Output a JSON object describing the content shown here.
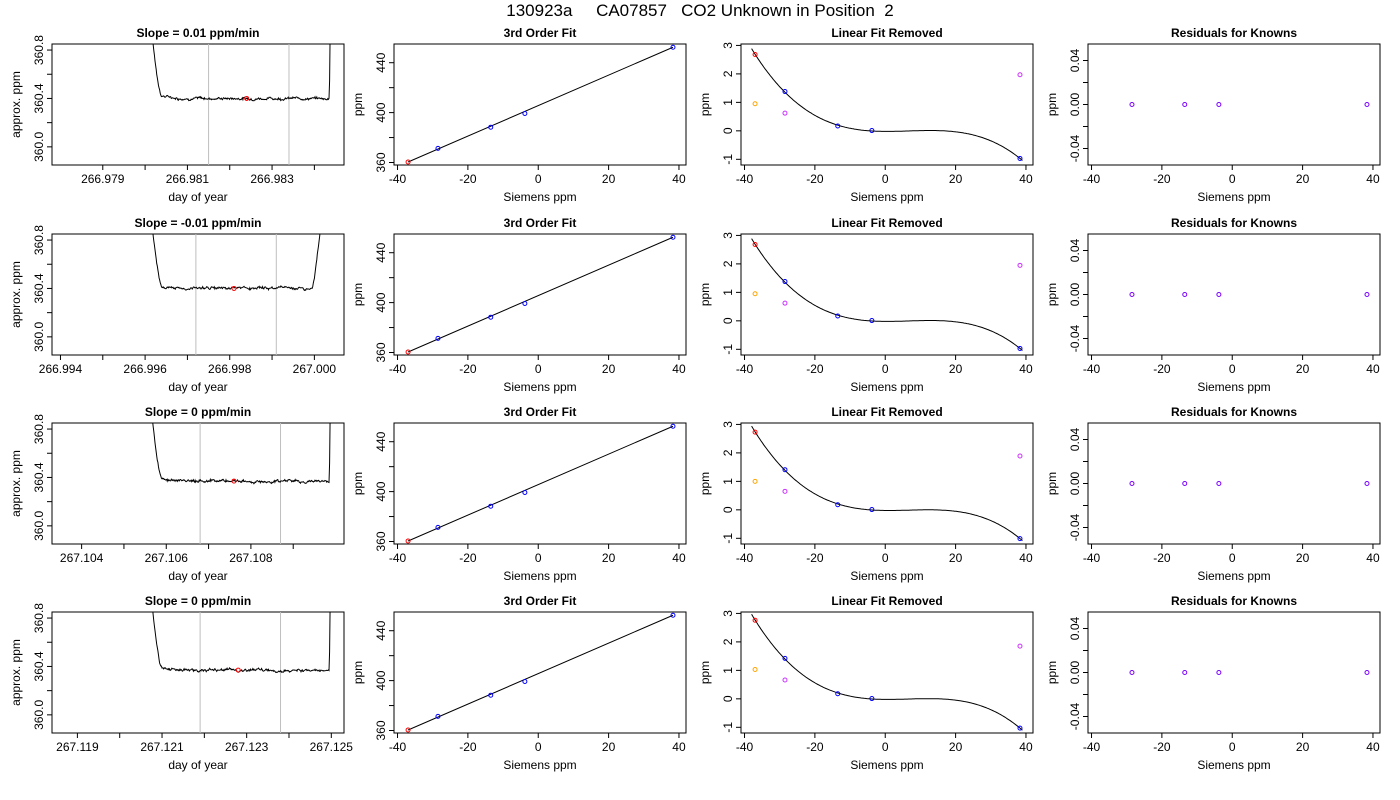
{
  "title": "130923a     CA07857   CO2 Unknown in Position  2",
  "colors": {
    "trace": "#000000",
    "vline": "#bebebe",
    "fit_line": "#000000",
    "known": "#0000ff",
    "unknown": "#ff0000",
    "orange": "#ffa500",
    "magenta": "#cc33ff",
    "residual": "#7a00ff"
  },
  "chart_data": [
    {
      "type": "line",
      "row": 1,
      "title": "Slope =  0.01  ppm/min",
      "xlabel": "day of year",
      "ylabel": "approx. ppm",
      "xlim": [
        266.9778,
        266.9847
      ],
      "ylim": [
        359.85,
        360.85
      ],
      "xticks": [
        266.979,
        266.98,
        266.981,
        266.982,
        266.983,
        266.984
      ],
      "xtick_labels": [
        "266.979",
        "",
        "266.981",
        "",
        "266.983",
        ""
      ],
      "yticks": [
        360.0,
        360.2,
        360.4,
        360.6,
        360.8
      ],
      "ytick_labels": [
        "360.0",
        "",
        "360.4",
        "",
        "360.8"
      ],
      "trace": {
        "x_start": 266.98,
        "x_end": 266.9844,
        "level": 360.4,
        "rise_left_end": 266.9804,
        "rise_right_start": 266.98435
      },
      "vlines": [
        266.9815,
        266.9834
      ],
      "unknown_point": [
        266.9824,
        360.4
      ]
    },
    {
      "type": "scatter",
      "row": 1,
      "title": "3rd Order Fit",
      "xlabel": "Siemens ppm",
      "ylabel": "ppm",
      "xlim": [
        -41,
        42
      ],
      "ylim": [
        358,
        455
      ],
      "xticks": [
        -40,
        -20,
        0,
        20,
        40
      ],
      "xtick_labels": [
        "-40",
        "-20",
        "0",
        "20",
        "40"
      ],
      "yticks": [
        360,
        380,
        400,
        420,
        440
      ],
      "ytick_labels": [
        "360",
        "",
        "400",
        "",
        "440"
      ],
      "points": [
        {
          "x": -37,
          "y": 360.4,
          "role": "unknown"
        },
        {
          "x": -28.5,
          "y": 371.3,
          "role": "known"
        },
        {
          "x": -13.5,
          "y": 388.3,
          "role": "known"
        },
        {
          "x": -3.8,
          "y": 399.3,
          "role": "known"
        },
        {
          "x": 38.3,
          "y": 452.4,
          "role": "known"
        }
      ]
    },
    {
      "type": "scatter",
      "row": 1,
      "title": "Linear Fit Removed",
      "xlabel": "Siemens ppm",
      "ylabel": "ppm",
      "xlim": [
        -41,
        42
      ],
      "ylim": [
        -1.2,
        3.05
      ],
      "xticks": [
        -40,
        -20,
        0,
        20,
        40
      ],
      "xtick_labels": [
        "-40",
        "-20",
        "0",
        "20",
        "40"
      ],
      "yticks": [
        -1,
        0,
        1,
        2,
        3
      ],
      "ytick_labels": [
        "-1",
        "0",
        "1",
        "2",
        "3"
      ],
      "curve": {
        "a": -3.4e-05,
        "b": 0.0,
        "c": 0.00785,
        "d": 0.0
      },
      "points": [
        {
          "x": -37,
          "y": 2.68,
          "role": "unknown"
        },
        {
          "x": -37,
          "y": 0.95,
          "role": "orange"
        },
        {
          "x": -28.5,
          "y": 1.38,
          "role": "known"
        },
        {
          "x": -28.5,
          "y": 0.62,
          "role": "magenta"
        },
        {
          "x": -13.5,
          "y": 0.17,
          "role": "known"
        },
        {
          "x": -3.8,
          "y": 0.01,
          "role": "known"
        },
        {
          "x": 38.3,
          "y": -0.97,
          "role": "known"
        },
        {
          "x": 38.3,
          "y": 1.97,
          "role": "magenta"
        }
      ]
    },
    {
      "type": "scatter",
      "row": 1,
      "title": "Residuals for Knowns",
      "xlabel": "Siemens ppm",
      "ylabel": "ppm",
      "xlim": [
        -41,
        42
      ],
      "ylim": [
        -0.055,
        0.055
      ],
      "xticks": [
        -40,
        -20,
        0,
        20,
        40
      ],
      "xtick_labels": [
        "-40",
        "-20",
        "0",
        "20",
        "40"
      ],
      "yticks": [
        -0.04,
        -0.02,
        0.0,
        0.02,
        0.04
      ],
      "ytick_labels": [
        "-0.04",
        "",
        "0.00",
        "",
        "0.04"
      ],
      "points": [
        {
          "x": -28.5,
          "y": 0.0,
          "role": "residual"
        },
        {
          "x": -13.5,
          "y": 0.0,
          "role": "residual"
        },
        {
          "x": -3.8,
          "y": 0.0,
          "role": "residual"
        },
        {
          "x": 38.3,
          "y": 0.0,
          "role": "residual"
        }
      ]
    },
    {
      "type": "line",
      "row": 2,
      "title": "Slope =  -0.01  ppm/min",
      "xlabel": "day of year",
      "ylabel": "approx. ppm",
      "xlim": [
        266.9938,
        267.0007
      ],
      "ylim": [
        359.85,
        360.85
      ],
      "xticks": [
        266.994,
        266.995,
        266.996,
        266.997,
        266.998,
        266.999,
        267.0
      ],
      "xtick_labels": [
        "266.994",
        "",
        "266.996",
        "",
        "266.998",
        "",
        "267.000"
      ],
      "yticks": [
        360.0,
        360.2,
        360.4,
        360.6,
        360.8
      ],
      "ytick_labels": [
        "360.0",
        "",
        "360.4",
        "",
        "360.8"
      ],
      "trace": {
        "x_start": 266.996,
        "x_end": 267.0004,
        "level": 360.4,
        "rise_left_end": 266.9964,
        "rise_right_start": 266.99995
      },
      "vlines": [
        266.9972,
        266.9991
      ],
      "unknown_point": [
        266.9981,
        360.4
      ]
    },
    {
      "type": "scatter",
      "row": 2,
      "title": "3rd Order Fit",
      "xlabel": "Siemens ppm",
      "ylabel": "ppm",
      "xlim": [
        -41,
        42
      ],
      "ylim": [
        358,
        455
      ],
      "xticks": [
        -40,
        -20,
        0,
        20,
        40
      ],
      "xtick_labels": [
        "-40",
        "-20",
        "0",
        "20",
        "40"
      ],
      "yticks": [
        360,
        380,
        400,
        420,
        440
      ],
      "ytick_labels": [
        "360",
        "",
        "400",
        "",
        "440"
      ],
      "points": [
        {
          "x": -37,
          "y": 360.4,
          "role": "unknown"
        },
        {
          "x": -28.5,
          "y": 371.3,
          "role": "known"
        },
        {
          "x": -13.5,
          "y": 388.3,
          "role": "known"
        },
        {
          "x": -3.8,
          "y": 399.3,
          "role": "known"
        },
        {
          "x": 38.3,
          "y": 452.4,
          "role": "known"
        }
      ]
    },
    {
      "type": "scatter",
      "row": 2,
      "title": "Linear Fit Removed",
      "xlabel": "Siemens ppm",
      "ylabel": "ppm",
      "xlim": [
        -41,
        42
      ],
      "ylim": [
        -1.2,
        3.05
      ],
      "xticks": [
        -40,
        -20,
        0,
        20,
        40
      ],
      "xtick_labels": [
        "-40",
        "-20",
        "0",
        "20",
        "40"
      ],
      "yticks": [
        -1,
        0,
        1,
        2,
        3
      ],
      "ytick_labels": [
        "-1",
        "0",
        "1",
        "2",
        "3"
      ],
      "curve": {
        "a": -3.4e-05,
        "b": 0.0,
        "c": 0.00785,
        "d": 0.0
      },
      "points": [
        {
          "x": -37,
          "y": 2.68,
          "role": "unknown"
        },
        {
          "x": -37,
          "y": 0.95,
          "role": "orange"
        },
        {
          "x": -28.5,
          "y": 1.38,
          "role": "known"
        },
        {
          "x": -28.5,
          "y": 0.62,
          "role": "magenta"
        },
        {
          "x": -13.5,
          "y": 0.17,
          "role": "known"
        },
        {
          "x": -3.8,
          "y": 0.01,
          "role": "known"
        },
        {
          "x": 38.3,
          "y": -0.97,
          "role": "known"
        },
        {
          "x": 38.3,
          "y": 1.95,
          "role": "magenta"
        }
      ]
    },
    {
      "type": "scatter",
      "row": 2,
      "title": "Residuals for Knowns",
      "xlabel": "Siemens ppm",
      "ylabel": "ppm",
      "xlim": [
        -41,
        42
      ],
      "ylim": [
        -0.055,
        0.055
      ],
      "xticks": [
        -40,
        -20,
        0,
        20,
        40
      ],
      "xtick_labels": [
        "-40",
        "-20",
        "0",
        "20",
        "40"
      ],
      "yticks": [
        -0.04,
        -0.02,
        0.0,
        0.02,
        0.04
      ],
      "ytick_labels": [
        "-0.04",
        "",
        "0.00",
        "",
        "0.04"
      ],
      "points": [
        {
          "x": -28.5,
          "y": 0.0,
          "role": "residual"
        },
        {
          "x": -13.5,
          "y": 0.0,
          "role": "residual"
        },
        {
          "x": -3.8,
          "y": 0.0,
          "role": "residual"
        },
        {
          "x": 38.3,
          "y": 0.0,
          "role": "residual"
        }
      ]
    },
    {
      "type": "line",
      "row": 3,
      "title": "Slope =  0  ppm/min",
      "xlabel": "day of year",
      "ylabel": "approx. ppm",
      "xlim": [
        267.1033,
        267.1102
      ],
      "ylim": [
        359.85,
        360.85
      ],
      "xticks": [
        267.104,
        267.105,
        267.106,
        267.107,
        267.108,
        267.109
      ],
      "xtick_labels": [
        "267.104",
        "",
        "267.106",
        "",
        "267.108",
        ""
      ],
      "yticks": [
        360.0,
        360.2,
        360.4,
        360.6,
        360.8
      ],
      "ytick_labels": [
        "360.0",
        "",
        "360.4",
        "",
        "360.8"
      ],
      "trace": {
        "x_start": 267.1055,
        "x_end": 267.1099,
        "level": 360.37,
        "rise_left_end": 267.1059,
        "rise_right_start": 267.10985
      },
      "vlines": [
        267.1068,
        267.1087
      ],
      "unknown_point": [
        267.1076,
        360.37
      ]
    },
    {
      "type": "scatter",
      "row": 3,
      "title": "3rd Order Fit",
      "xlabel": "Siemens ppm",
      "ylabel": "ppm",
      "xlim": [
        -41,
        42
      ],
      "ylim": [
        358,
        455
      ],
      "xticks": [
        -40,
        -20,
        0,
        20,
        40
      ],
      "xtick_labels": [
        "-40",
        "-20",
        "0",
        "20",
        "40"
      ],
      "yticks": [
        360,
        380,
        400,
        420,
        440
      ],
      "ytick_labels": [
        "360",
        "",
        "400",
        "",
        "440"
      ],
      "points": [
        {
          "x": -37,
          "y": 360.4,
          "role": "unknown"
        },
        {
          "x": -28.5,
          "y": 371.3,
          "role": "known"
        },
        {
          "x": -13.5,
          "y": 388.3,
          "role": "known"
        },
        {
          "x": -3.8,
          "y": 399.3,
          "role": "known"
        },
        {
          "x": 38.3,
          "y": 452.4,
          "role": "known"
        }
      ]
    },
    {
      "type": "scatter",
      "row": 3,
      "title": "Linear Fit Removed",
      "xlabel": "Siemens ppm",
      "ylabel": "ppm",
      "xlim": [
        -41,
        42
      ],
      "ylim": [
        -1.2,
        3.05
      ],
      "xticks": [
        -40,
        -20,
        0,
        20,
        40
      ],
      "xtick_labels": [
        "-40",
        "-20",
        "0",
        "20",
        "40"
      ],
      "yticks": [
        -1,
        0,
        1,
        2,
        3
      ],
      "ytick_labels": [
        "-1",
        "0",
        "1",
        "2",
        "3"
      ],
      "curve": {
        "a": -3.5e-05,
        "b": 0.0,
        "c": 0.0081,
        "d": 0.0
      },
      "points": [
        {
          "x": -37,
          "y": 2.73,
          "role": "unknown"
        },
        {
          "x": -37,
          "y": 1.0,
          "role": "orange"
        },
        {
          "x": -28.5,
          "y": 1.41,
          "role": "known"
        },
        {
          "x": -28.5,
          "y": 0.65,
          "role": "magenta"
        },
        {
          "x": -13.5,
          "y": 0.18,
          "role": "known"
        },
        {
          "x": -3.8,
          "y": 0.01,
          "role": "known"
        },
        {
          "x": 38.3,
          "y": -1.01,
          "role": "known"
        },
        {
          "x": 38.3,
          "y": 1.89,
          "role": "magenta"
        }
      ]
    },
    {
      "type": "scatter",
      "row": 3,
      "title": "Residuals for Knowns",
      "xlabel": "Siemens ppm",
      "ylabel": "ppm",
      "xlim": [
        -41,
        42
      ],
      "ylim": [
        -0.055,
        0.055
      ],
      "xticks": [
        -40,
        -20,
        0,
        20,
        40
      ],
      "xtick_labels": [
        "-40",
        "-20",
        "0",
        "20",
        "40"
      ],
      "yticks": [
        -0.04,
        -0.02,
        0.0,
        0.02,
        0.04
      ],
      "ytick_labels": [
        "-0.04",
        "",
        "0.00",
        "",
        "0.04"
      ],
      "points": [
        {
          "x": -28.5,
          "y": 0.0,
          "role": "residual"
        },
        {
          "x": -13.5,
          "y": 0.0,
          "role": "residual"
        },
        {
          "x": -3.8,
          "y": 0.0,
          "role": "residual"
        },
        {
          "x": 38.3,
          "y": 0.0,
          "role": "residual"
        }
      ]
    },
    {
      "type": "line",
      "row": 4,
      "title": "Slope =  0  ppm/min",
      "xlabel": "day of year",
      "ylabel": "approx. ppm",
      "xlim": [
        267.1184,
        267.1253
      ],
      "ylim": [
        359.85,
        360.85
      ],
      "xticks": [
        267.119,
        267.12,
        267.121,
        267.122,
        267.123,
        267.124,
        267.125
      ],
      "xtick_labels": [
        "267.119",
        "",
        "267.121",
        "",
        "267.123",
        "",
        "267.125"
      ],
      "yticks": [
        360.0,
        360.2,
        360.4,
        360.6,
        360.8
      ],
      "ytick_labels": [
        "360.0",
        "",
        "360.4",
        "",
        "360.8"
      ],
      "trace": {
        "x_start": 267.1206,
        "x_end": 267.125,
        "level": 360.37,
        "rise_left_end": 267.121,
        "rise_right_start": 267.12495
      },
      "vlines": [
        267.1219,
        267.1238
      ],
      "unknown_point": [
        267.1228,
        360.37
      ]
    },
    {
      "type": "scatter",
      "row": 4,
      "title": "3rd Order Fit",
      "xlabel": "Siemens ppm",
      "ylabel": "ppm",
      "xlim": [
        -41,
        42
      ],
      "ylim": [
        358,
        455
      ],
      "xticks": [
        -40,
        -20,
        0,
        20,
        40
      ],
      "xtick_labels": [
        "-40",
        "-20",
        "0",
        "20",
        "40"
      ],
      "yticks": [
        360,
        380,
        400,
        420,
        440
      ],
      "ytick_labels": [
        "360",
        "",
        "400",
        "",
        "440"
      ],
      "points": [
        {
          "x": -37,
          "y": 360.4,
          "role": "unknown"
        },
        {
          "x": -28.5,
          "y": 371.3,
          "role": "known"
        },
        {
          "x": -13.5,
          "y": 388.3,
          "role": "known"
        },
        {
          "x": -3.8,
          "y": 399.3,
          "role": "known"
        },
        {
          "x": 38.3,
          "y": 452.4,
          "role": "known"
        }
      ]
    },
    {
      "type": "scatter",
      "row": 4,
      "title": "Linear Fit Removed",
      "xlabel": "Siemens ppm",
      "ylabel": "ppm",
      "xlim": [
        -41,
        42
      ],
      "ylim": [
        -1.2,
        3.05
      ],
      "xticks": [
        -40,
        -20,
        0,
        20,
        40
      ],
      "xtick_labels": [
        "-40",
        "-20",
        "0",
        "20",
        "40"
      ],
      "yticks": [
        -1,
        0,
        1,
        2,
        3
      ],
      "ytick_labels": [
        "-1",
        "0",
        "1",
        "2",
        "3"
      ],
      "curve": {
        "a": -3.55e-05,
        "b": 0.0,
        "c": 0.0082,
        "d": 0.0
      },
      "points": [
        {
          "x": -37,
          "y": 2.76,
          "role": "unknown"
        },
        {
          "x": -37,
          "y": 1.03,
          "role": "orange"
        },
        {
          "x": -28.5,
          "y": 1.42,
          "role": "known"
        },
        {
          "x": -28.5,
          "y": 0.66,
          "role": "magenta"
        },
        {
          "x": -13.5,
          "y": 0.18,
          "role": "known"
        },
        {
          "x": -3.8,
          "y": 0.01,
          "role": "known"
        },
        {
          "x": 38.3,
          "y": -1.03,
          "role": "known"
        },
        {
          "x": 38.3,
          "y": 1.85,
          "role": "magenta"
        }
      ]
    },
    {
      "type": "scatter",
      "row": 4,
      "title": "Residuals for Knowns",
      "xlabel": "Siemens ppm",
      "ylabel": "ppm",
      "xlim": [
        -41,
        42
      ],
      "ylim": [
        -0.055,
        0.055
      ],
      "xticks": [
        -40,
        -20,
        0,
        20,
        40
      ],
      "xtick_labels": [
        "-40",
        "-20",
        "0",
        "20",
        "40"
      ],
      "yticks": [
        -0.04,
        -0.02,
        0.0,
        0.02,
        0.04
      ],
      "ytick_labels": [
        "-0.04",
        "",
        "0.00",
        "",
        "0.04"
      ],
      "points": [
        {
          "x": -28.5,
          "y": 0.0,
          "role": "residual"
        },
        {
          "x": -13.5,
          "y": 0.0,
          "role": "residual"
        },
        {
          "x": -3.8,
          "y": 0.0,
          "role": "residual"
        },
        {
          "x": 38.3,
          "y": 0.0,
          "role": "residual"
        }
      ]
    }
  ]
}
